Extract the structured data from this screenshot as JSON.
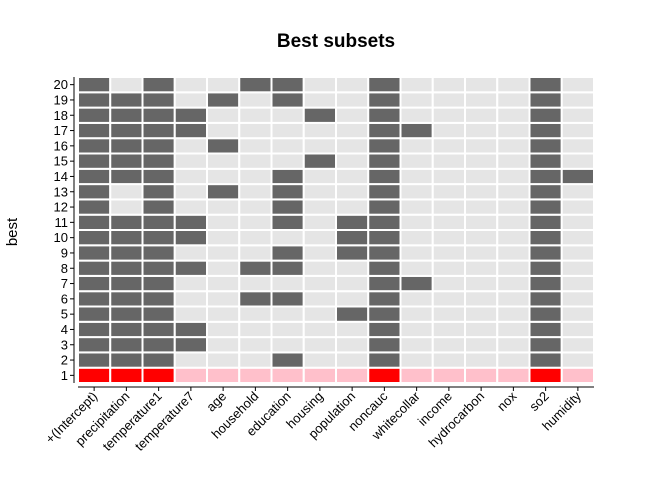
{
  "chart_data": {
    "type": "heatmap",
    "title": "Best subsets",
    "xlabel": "",
    "ylabel": "best",
    "x_categories": [
      "+(Intercept)",
      "precipitation",
      "temperature1",
      "temperature7",
      "age",
      "household",
      "education",
      "housing",
      "population",
      "noncauc",
      "whitecollar",
      "income",
      "hydrocarbon",
      "nox",
      "so2",
      "humidity"
    ],
    "y_categories": [
      "1",
      "2",
      "3",
      "4",
      "5",
      "6",
      "7",
      "8",
      "9",
      "10",
      "11",
      "12",
      "13",
      "14",
      "15",
      "16",
      "17",
      "18",
      "19",
      "20"
    ],
    "grid": false,
    "legend": "none",
    "colors": {
      "included": "#666666",
      "excluded": "#e5e5e5",
      "highlight_included": "#ff0000",
      "highlight_excluded": "#ffc0cb",
      "cell_border": "#ffffff"
    },
    "highlight_row": "1",
    "rows": [
      {
        "best": "1",
        "included": [
          1,
          1,
          1,
          0,
          0,
          0,
          0,
          0,
          0,
          1,
          0,
          0,
          0,
          0,
          1,
          0
        ]
      },
      {
        "best": "2",
        "included": [
          1,
          1,
          1,
          0,
          0,
          0,
          1,
          0,
          0,
          1,
          0,
          0,
          0,
          0,
          1,
          0
        ]
      },
      {
        "best": "3",
        "included": [
          1,
          1,
          1,
          1,
          0,
          0,
          0,
          0,
          0,
          1,
          0,
          0,
          0,
          0,
          1,
          0
        ]
      },
      {
        "best": "4",
        "included": [
          1,
          1,
          1,
          1,
          0,
          0,
          0,
          0,
          0,
          1,
          0,
          0,
          0,
          0,
          1,
          0
        ]
      },
      {
        "best": "5",
        "included": [
          1,
          1,
          1,
          0,
          0,
          0,
          0,
          0,
          1,
          1,
          0,
          0,
          0,
          0,
          1,
          0
        ]
      },
      {
        "best": "6",
        "included": [
          1,
          1,
          1,
          0,
          0,
          1,
          1,
          0,
          0,
          1,
          0,
          0,
          0,
          0,
          1,
          0
        ]
      },
      {
        "best": "7",
        "included": [
          1,
          1,
          1,
          0,
          0,
          0,
          0,
          0,
          0,
          1,
          1,
          0,
          0,
          0,
          1,
          0
        ]
      },
      {
        "best": "8",
        "included": [
          1,
          1,
          1,
          1,
          0,
          1,
          1,
          0,
          0,
          1,
          0,
          0,
          0,
          0,
          1,
          0
        ]
      },
      {
        "best": "9",
        "included": [
          1,
          1,
          1,
          0,
          0,
          0,
          1,
          0,
          1,
          1,
          0,
          0,
          0,
          0,
          1,
          0
        ]
      },
      {
        "best": "10",
        "included": [
          1,
          1,
          1,
          1,
          0,
          0,
          0,
          0,
          1,
          1,
          0,
          0,
          0,
          0,
          1,
          0
        ]
      },
      {
        "best": "11",
        "included": [
          1,
          1,
          1,
          1,
          0,
          0,
          1,
          0,
          1,
          1,
          0,
          0,
          0,
          0,
          1,
          0
        ]
      },
      {
        "best": "12",
        "included": [
          1,
          0,
          1,
          0,
          0,
          0,
          1,
          0,
          0,
          1,
          0,
          0,
          0,
          0,
          1,
          0
        ]
      },
      {
        "best": "13",
        "included": [
          1,
          0,
          1,
          0,
          1,
          0,
          1,
          0,
          0,
          1,
          0,
          0,
          0,
          0,
          1,
          0
        ]
      },
      {
        "best": "14",
        "included": [
          1,
          1,
          1,
          0,
          0,
          0,
          1,
          0,
          0,
          1,
          0,
          0,
          0,
          0,
          1,
          1
        ]
      },
      {
        "best": "15",
        "included": [
          1,
          1,
          1,
          0,
          0,
          0,
          0,
          1,
          0,
          1,
          0,
          0,
          0,
          0,
          1,
          0
        ]
      },
      {
        "best": "16",
        "included": [
          1,
          1,
          1,
          0,
          1,
          0,
          0,
          0,
          0,
          1,
          0,
          0,
          0,
          0,
          1,
          0
        ]
      },
      {
        "best": "17",
        "included": [
          1,
          1,
          1,
          1,
          0,
          0,
          0,
          0,
          0,
          1,
          1,
          0,
          0,
          0,
          1,
          0
        ]
      },
      {
        "best": "18",
        "included": [
          1,
          1,
          1,
          1,
          0,
          0,
          0,
          1,
          0,
          1,
          0,
          0,
          0,
          0,
          1,
          0
        ]
      },
      {
        "best": "19",
        "included": [
          1,
          1,
          1,
          0,
          1,
          0,
          1,
          0,
          0,
          1,
          0,
          0,
          0,
          0,
          1,
          0
        ]
      },
      {
        "best": "20",
        "included": [
          1,
          0,
          1,
          0,
          0,
          1,
          1,
          0,
          0,
          1,
          0,
          0,
          0,
          0,
          1,
          0
        ]
      }
    ]
  }
}
